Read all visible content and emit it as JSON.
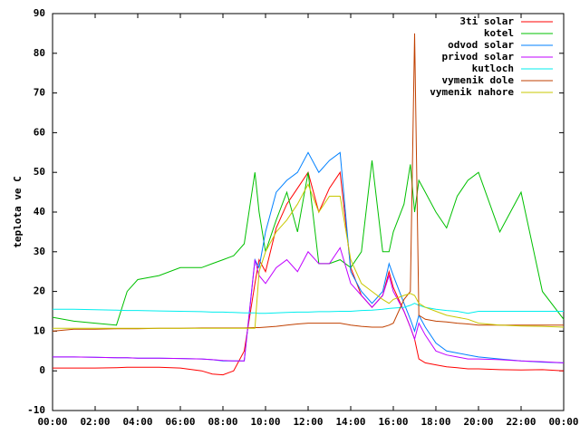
{
  "chart_data": {
    "type": "line",
    "y_label": "teplota ve C",
    "legend": "top-right",
    "xlim": [
      0,
      24
    ],
    "xticks": [
      {
        "value": 0,
        "label": "00:00"
      },
      {
        "value": 2,
        "label": "02:00"
      },
      {
        "value": 4,
        "label": "04:00"
      },
      {
        "value": 6,
        "label": "06:00"
      },
      {
        "value": 8,
        "label": "08:00"
      },
      {
        "value": 10,
        "label": "10:00"
      },
      {
        "value": 12,
        "label": "12:00"
      },
      {
        "value": 14,
        "label": "14:00"
      },
      {
        "value": 16,
        "label": "16:00"
      },
      {
        "value": 18,
        "label": "18:00"
      },
      {
        "value": 20,
        "label": "20:00"
      },
      {
        "value": 22,
        "label": "22:00"
      },
      {
        "value": 24,
        "label": "00:00"
      }
    ],
    "ylim": [
      -10,
      90
    ],
    "yticks": [
      -10,
      0,
      10,
      20,
      30,
      40,
      50,
      60,
      70,
      80,
      90
    ],
    "x": [
      0,
      1,
      2,
      3,
      3.5,
      4,
      5,
      6,
      7,
      7.5,
      8,
      8.5,
      9,
      9.5,
      9.7,
      10,
      10.5,
      11,
      11.5,
      12,
      12.5,
      13,
      13.5,
      14,
      14.5,
      15,
      15.5,
      15.8,
      16,
      16.5,
      16.8,
      17,
      17.2,
      17.5,
      18,
      18.5,
      19,
      19.5,
      20,
      21,
      22,
      23,
      24
    ],
    "series": [
      {
        "name": "3ti solar",
        "color": "#ff0000",
        "values": [
          0.7,
          0.7,
          0.7,
          0.8,
          0.9,
          0.9,
          0.9,
          0.7,
          0,
          -0.8,
          -1,
          0,
          5,
          22,
          28,
          25,
          36,
          42,
          46,
          50,
          40,
          46,
          50,
          26,
          19,
          16,
          19,
          25,
          21,
          15,
          11,
          8,
          3,
          2,
          1.5,
          1,
          0.8,
          0.5,
          0.5,
          0.3,
          0.2,
          0.3,
          0
        ]
      },
      {
        "name": "kotel",
        "color": "#00c000",
        "values": [
          13.5,
          12.5,
          12,
          11.5,
          20,
          23,
          24,
          26,
          26,
          27,
          28,
          29,
          32,
          50,
          40,
          30,
          38,
          45,
          35,
          50,
          27,
          27,
          28,
          26,
          30,
          53,
          30,
          30,
          35,
          42,
          52,
          40,
          48,
          45,
          40,
          36,
          44,
          48,
          50,
          35,
          45,
          20,
          13
        ]
      },
      {
        "name": "odvod solar",
        "color": "#0080ff",
        "values": [
          3.5,
          3.5,
          3.4,
          3.3,
          3.3,
          3.2,
          3.2,
          3.1,
          3,
          2.8,
          2.5,
          2.5,
          2.5,
          28,
          26,
          35,
          45,
          48,
          50,
          55,
          50,
          53,
          55,
          25,
          20,
          17,
          20,
          27,
          24,
          17,
          13,
          10,
          14,
          11,
          7,
          5,
          4.5,
          4,
          3.5,
          3,
          2.5,
          2.2,
          2
        ]
      },
      {
        "name": "privod solar",
        "color": "#c000ff",
        "values": [
          3.5,
          3.5,
          3.4,
          3.3,
          3.3,
          3.2,
          3.2,
          3.1,
          3,
          2.8,
          2.6,
          2.5,
          2.5,
          28,
          24,
          22,
          26,
          28,
          25,
          30,
          27,
          27,
          31,
          22,
          19,
          16,
          19,
          24,
          20,
          15,
          11,
          8,
          12,
          9,
          5,
          4,
          3.5,
          3,
          3,
          2.8,
          2.5,
          2.3,
          2
        ]
      },
      {
        "name": "kutloch",
        "color": "#00eeee",
        "values": [
          15.5,
          15.5,
          15.4,
          15.3,
          15.2,
          15.2,
          15.1,
          15,
          14.9,
          14.8,
          14.8,
          14.7,
          14.6,
          14.6,
          14.5,
          14.5,
          14.6,
          14.7,
          14.8,
          14.8,
          14.9,
          14.9,
          15,
          15,
          15.2,
          15.3,
          15.5,
          15.7,
          15.8,
          16,
          16.5,
          17,
          16.5,
          16,
          15.5,
          15.2,
          15,
          14.5,
          15,
          15,
          15,
          15,
          15
        ]
      },
      {
        "name": "vymenik dole",
        "color": "#c04000",
        "values": [
          10,
          10.5,
          10.5,
          10.6,
          10.6,
          10.6,
          10.7,
          10.7,
          10.8,
          10.8,
          10.8,
          10.8,
          10.8,
          10.9,
          10.9,
          11,
          11.2,
          11.5,
          11.8,
          12,
          12,
          12,
          12,
          11.5,
          11.2,
          11,
          11,
          11.5,
          12,
          18,
          20,
          85,
          14,
          13,
          12.5,
          12.3,
          12,
          11.8,
          11.5,
          11.5,
          11.5,
          11.5,
          11.5
        ]
      },
      {
        "name": "vymenik nahore",
        "color": "#c8c800",
        "values": [
          10.7,
          10.7,
          10.7,
          10.7,
          10.7,
          10.7,
          10.7,
          10.7,
          10.7,
          10.7,
          10.7,
          10.7,
          10.7,
          10.7,
          25,
          30,
          35,
          38,
          42,
          47,
          40,
          44,
          44,
          28,
          22,
          20,
          18,
          17,
          18,
          19,
          19.5,
          19,
          17,
          16,
          15,
          14,
          13.5,
          13,
          12,
          11.5,
          11.3,
          11.2,
          11
        ]
      }
    ]
  }
}
